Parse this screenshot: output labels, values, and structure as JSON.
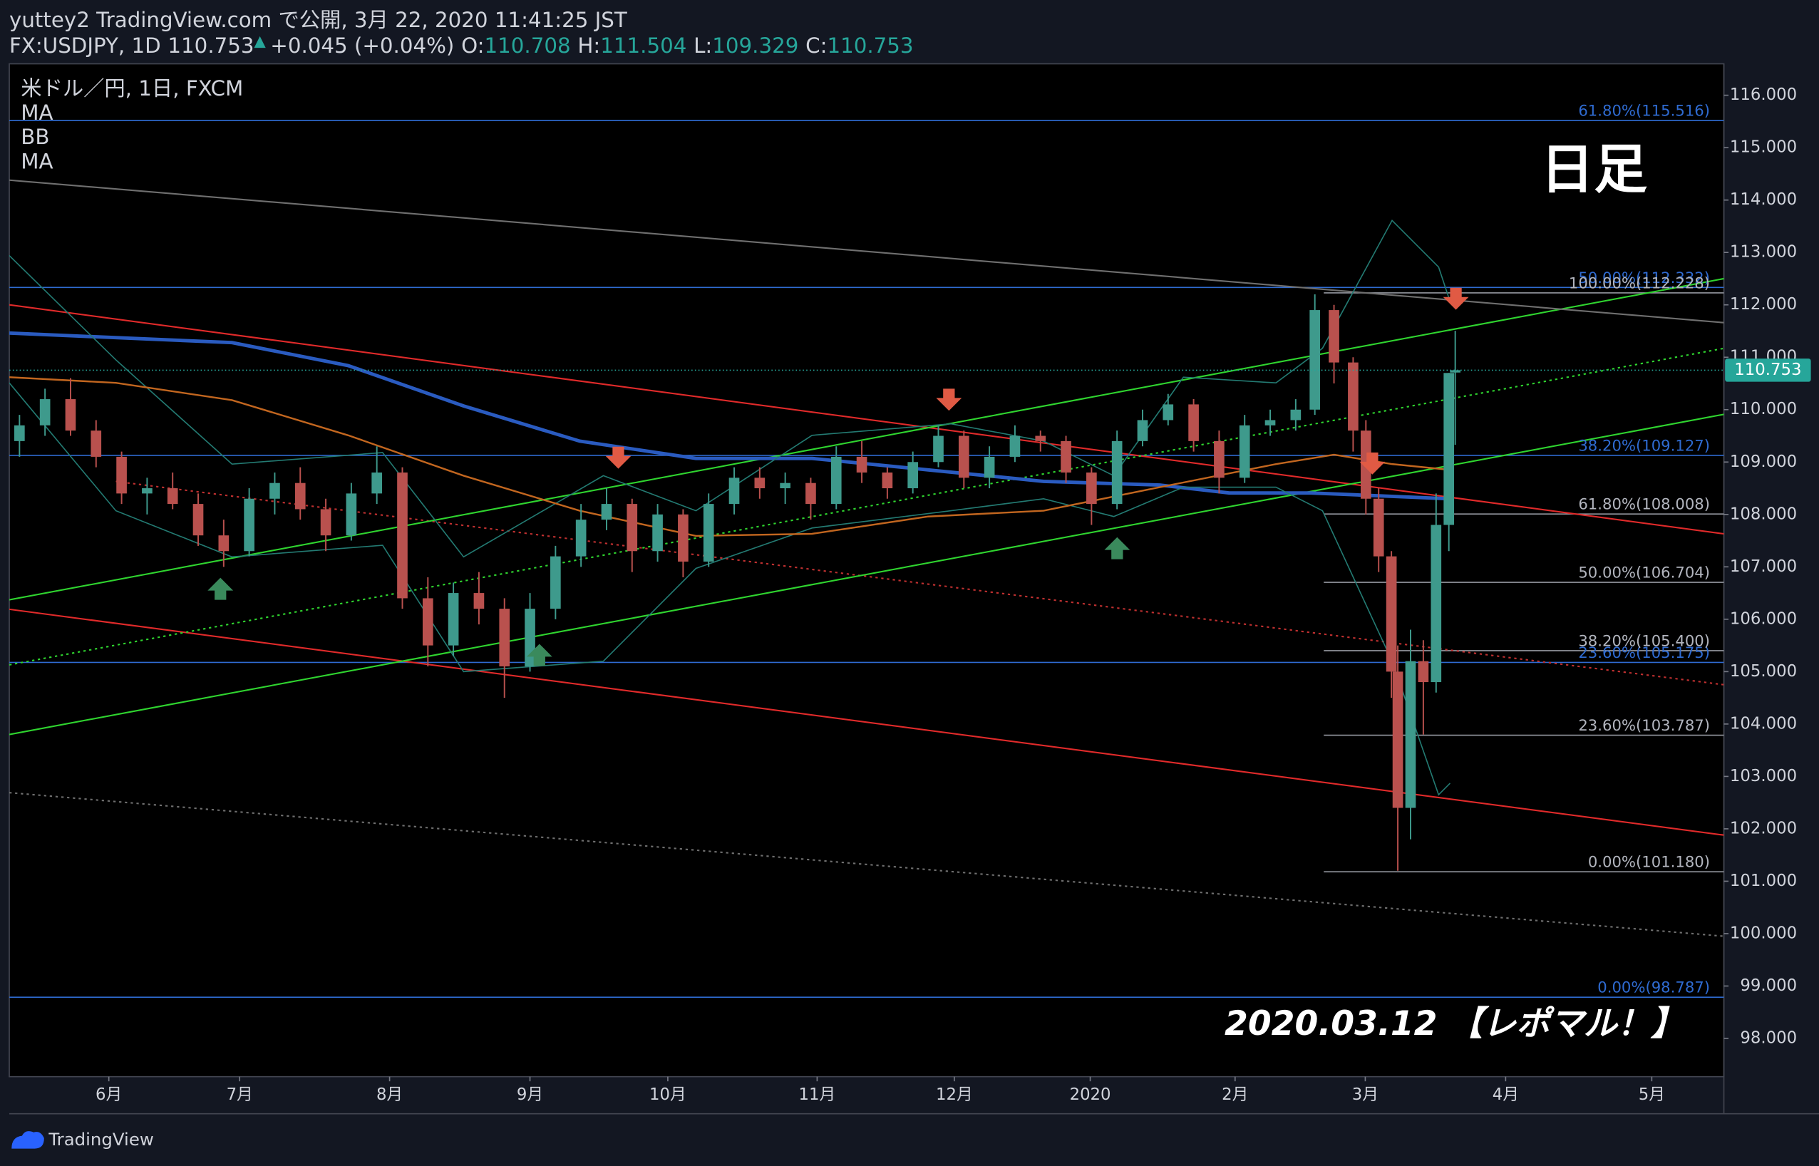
{
  "chart_data": {
    "type": "candlestick",
    "header": {
      "line1": "yuttey2 TradingView.com で公開, 3月 22, 2020 11:41:25 JST",
      "symbol": "FX:USDJPY, 1D",
      "last": "110.753",
      "arrow": "▲",
      "change": "+0.045 (+0.04%)",
      "ohlc": [
        {
          "label": "O:",
          "value": "110.708"
        },
        {
          "label": "H:",
          "value": "111.504"
        },
        {
          "label": "L:",
          "value": "109.329"
        },
        {
          "label": "C:",
          "value": "110.753"
        }
      ]
    },
    "legend_title": "米ドル／円, 1日, FXCM",
    "title": "日足",
    "annotation": "2020.03.12 【レポマル！】",
    "brand": "TradingView",
    "xlim": [
      -15.6,
      253.1
    ],
    "ylim": [
      97.27,
      116.6
    ],
    "xticks": [
      {
        "value": 0,
        "label": "6月"
      },
      {
        "value": 20.5,
        "label": "7月"
      },
      {
        "value": 44,
        "label": "8月"
      },
      {
        "value": 66,
        "label": "9月"
      },
      {
        "value": 87.6,
        "label": "10月"
      },
      {
        "value": 111,
        "label": "11月"
      },
      {
        "value": 132.5,
        "label": "12月"
      },
      {
        "value": 153.8,
        "label": "2020"
      },
      {
        "value": 176.5,
        "label": "2月"
      },
      {
        "value": 196.9,
        "label": "3月"
      },
      {
        "value": 218.9,
        "label": "4月"
      },
      {
        "value": 241.8,
        "label": "5月"
      }
    ],
    "yticks": [
      {
        "value": 98,
        "label": "98.000"
      },
      {
        "value": 99,
        "label": "99.000"
      },
      {
        "value": 100,
        "label": "100.000"
      },
      {
        "value": 101,
        "label": "101.000"
      },
      {
        "value": 102,
        "label": "102.000"
      },
      {
        "value": 103,
        "label": "103.000"
      },
      {
        "value": 104,
        "label": "104.000"
      },
      {
        "value": 105,
        "label": "105.000"
      },
      {
        "value": 106,
        "label": "106.000"
      },
      {
        "value": 107,
        "label": "107.000"
      },
      {
        "value": 108,
        "label": "108.000"
      },
      {
        "value": 109,
        "label": "109.000"
      },
      {
        "value": 110,
        "label": "110.000"
      },
      {
        "value": 111,
        "label": "111.000"
      },
      {
        "value": 112,
        "label": "112.000"
      },
      {
        "value": 113,
        "label": "113.000"
      },
      {
        "value": 114,
        "label": "114.000"
      },
      {
        "value": 115,
        "label": "115.000"
      },
      {
        "value": 116,
        "label": "116.000"
      }
    ],
    "up_color": "#3e9a8c",
    "down_color": "#b9514e",
    "candles": {
      "x": [
        -14,
        -10,
        -6,
        -2,
        2,
        6,
        10,
        14,
        18,
        22,
        26,
        30,
        34,
        38,
        42,
        46,
        50,
        54,
        58,
        62,
        66,
        70,
        74,
        78,
        82,
        86,
        90,
        94,
        98,
        102,
        106,
        110,
        114,
        118,
        122,
        126,
        130,
        134,
        138,
        142,
        146,
        150,
        154,
        158,
        162,
        166,
        170,
        174,
        178,
        182,
        186,
        189,
        192,
        195,
        197,
        199,
        201,
        202,
        204,
        206,
        208,
        210,
        211
      ],
      "open": [
        109.4,
        109.7,
        110.2,
        109.6,
        109.1,
        108.4,
        108.5,
        108.2,
        107.6,
        107.3,
        108.3,
        108.6,
        108.1,
        107.6,
        108.4,
        108.8,
        106.4,
        105.5,
        106.5,
        106.2,
        105.1,
        106.2,
        107.2,
        107.9,
        108.2,
        107.3,
        108.0,
        107.1,
        108.2,
        108.7,
        108.5,
        108.6,
        108.2,
        109.1,
        108.8,
        108.5,
        109.0,
        109.5,
        108.7,
        109.1,
        109.5,
        109.4,
        108.8,
        108.2,
        109.4,
        109.8,
        110.1,
        109.4,
        108.7,
        109.7,
        109.8,
        110.0,
        111.9,
        110.9,
        109.6,
        108.3,
        107.2,
        105.0,
        102.4,
        105.2,
        104.8,
        107.8,
        110.708
      ],
      "high": [
        109.9,
        110.4,
        110.6,
        109.8,
        109.2,
        108.7,
        108.8,
        108.4,
        107.9,
        108.5,
        108.8,
        108.9,
        108.3,
        108.6,
        109.3,
        108.9,
        106.8,
        106.7,
        106.9,
        106.4,
        106.5,
        107.4,
        108.2,
        108.5,
        108.3,
        108.2,
        108.1,
        108.4,
        108.9,
        108.9,
        108.8,
        108.7,
        109.3,
        109.4,
        108.9,
        109.2,
        109.7,
        109.6,
        109.3,
        109.7,
        109.6,
        109.5,
        108.9,
        109.6,
        110.0,
        110.3,
        110.2,
        109.6,
        109.9,
        110.0,
        110.2,
        112.2,
        112.0,
        111.0,
        109.8,
        108.5,
        107.3,
        105.5,
        105.8,
        105.6,
        108.4,
        110.7,
        111.504
      ],
      "low": [
        109.1,
        109.5,
        109.5,
        108.9,
        108.2,
        108.0,
        108.1,
        107.4,
        107.0,
        107.2,
        108.0,
        107.9,
        107.3,
        107.5,
        108.2,
        106.2,
        105.1,
        105.3,
        105.9,
        104.5,
        105.0,
        106.0,
        107.0,
        107.7,
        106.9,
        107.1,
        106.8,
        107.0,
        108.0,
        108.3,
        108.2,
        107.9,
        108.1,
        108.6,
        108.3,
        108.4,
        108.9,
        108.5,
        108.5,
        109.0,
        109.2,
        108.6,
        107.8,
        108.1,
        109.3,
        109.7,
        109.2,
        108.4,
        108.6,
        109.5,
        109.6,
        109.9,
        110.5,
        109.2,
        108.0,
        106.9,
        104.5,
        101.2,
        101.8,
        103.8,
        104.6,
        107.3,
        109.329
      ],
      "close": [
        109.7,
        110.2,
        109.6,
        109.1,
        108.4,
        108.5,
        108.2,
        107.6,
        107.3,
        108.3,
        108.6,
        108.1,
        107.6,
        108.4,
        108.8,
        106.4,
        105.5,
        106.5,
        106.2,
        105.1,
        106.2,
        107.2,
        107.9,
        108.2,
        107.3,
        108.0,
        107.1,
        108.2,
        108.7,
        108.5,
        108.6,
        108.2,
        109.1,
        108.8,
        108.5,
        109.0,
        109.5,
        108.7,
        109.1,
        109.5,
        109.4,
        108.8,
        108.2,
        109.4,
        109.8,
        110.1,
        109.4,
        108.7,
        109.7,
        109.8,
        110.0,
        111.9,
        110.9,
        109.6,
        108.3,
        107.2,
        105.0,
        102.4,
        105.2,
        104.8,
        107.8,
        110.7,
        110.753
      ]
    },
    "overlays": [
      {
        "name": "MA",
        "color": "#2a5bc0",
        "width": 3,
        "x": [
          -15.6,
          19.3,
          37.5,
          55.6,
          73.8,
          92,
          110.2,
          128.4,
          146.5,
          164.7,
          175.6,
          188.4,
          210.2
        ],
        "values": [
          111.46,
          111.28,
          110.84,
          110.07,
          109.4,
          109.07,
          109.07,
          108.85,
          108.63,
          108.56,
          108.41,
          108.41,
          108.3
        ]
      },
      {
        "name": "BB",
        "color": "#237a72",
        "width": 1,
        "x": [
          -15.6,
          1.1,
          19.3,
          42.9,
          55.6,
          77.5,
          92,
          110.2,
          132,
          146.5,
          157.5,
          168.4,
          182.9,
          190.2,
          201.1,
          208.4,
          210.2
        ],
        "upper": [
          112.94,
          110.95,
          108.96,
          109.18,
          107.19,
          108.74,
          108.07,
          109.51,
          109.73,
          109.4,
          108.74,
          110.62,
          110.51,
          111.17,
          113.61,
          112.72,
          112.06
        ],
        "lower": [
          110.51,
          108.07,
          107.19,
          107.41,
          105.0,
          105.2,
          106.97,
          107.74,
          108.07,
          108.3,
          107.96,
          108.52,
          108.52,
          108.07,
          105.2,
          102.65,
          102.87
        ]
      },
      {
        "name": "MA",
        "color": "#c2661f",
        "width": 1.5,
        "x": [
          -15.6,
          1.1,
          19.3,
          37.5,
          55.6,
          73.8,
          92,
          110.2,
          128.4,
          146.5,
          164.7,
          182.9,
          192,
          201.1,
          210.2
        ],
        "values": [
          110.62,
          110.51,
          110.18,
          109.51,
          108.74,
          108.07,
          107.59,
          107.63,
          107.96,
          108.07,
          108.52,
          108.96,
          109.14,
          108.96,
          108.85
        ]
      }
    ],
    "trend_lines": [
      {
        "color": "#e02a2a",
        "style": "solid",
        "x": [
          -15.6,
          253.1
        ],
        "values": [
          112.0,
          107.63
        ]
      },
      {
        "color": "#e02a2a",
        "style": "solid",
        "x": [
          -15.6,
          253.1
        ],
        "values": [
          106.19,
          101.88
        ]
      },
      {
        "color": "#c03030",
        "style": "dotted",
        "x": [
          1.1,
          253.1
        ],
        "values": [
          108.63,
          104.75
        ]
      },
      {
        "color": "#2fd42f",
        "style": "solid",
        "x": [
          -15.6,
          253.1
        ],
        "values": [
          106.37,
          112.5
        ]
      },
      {
        "color": "#2fd42f",
        "style": "solid",
        "x": [
          -15.6,
          253.1
        ],
        "values": [
          103.8,
          109.91
        ]
      },
      {
        "color": "#2fd42f",
        "style": "dotted",
        "x": [
          -15.6,
          253.1
        ],
        "values": [
          105.13,
          111.17
        ]
      },
      {
        "color": "#6f6f6f",
        "style": "solid",
        "x": [
          -15.6,
          253.1
        ],
        "values": [
          114.38,
          111.66
        ]
      },
      {
        "color": "#6f6f6f",
        "style": "dotted",
        "x": [
          -15.6,
          253.1
        ],
        "values": [
          102.69,
          99.95
        ]
      }
    ],
    "fib_blue": {
      "color": "#2f6bd1",
      "levels": [
        {
          "value": 115.516,
          "label": "61.80%(115.516)"
        },
        {
          "value": 112.332,
          "label": "50.00%(112.332)"
        },
        {
          "value": 109.127,
          "label": "38.20%(109.127)"
        },
        {
          "value": 105.175,
          "label": "23.60%(105.175)"
        },
        {
          "value": 98.787,
          "label": "0.00%(98.787)"
        }
      ]
    },
    "fib_grey": {
      "color": "#9598a1",
      "x_start": 190.4,
      "levels": [
        {
          "value": 112.228,
          "label": "100.00%(112.228)"
        },
        {
          "value": 108.008,
          "label": "61.80%(108.008)"
        },
        {
          "value": 106.704,
          "label": "50.00%(106.704)"
        },
        {
          "value": 105.4,
          "label": "38.20%(105.400)"
        },
        {
          "value": 103.787,
          "label": "23.60%(103.787)"
        },
        {
          "value": 101.18,
          "label": "0.00%(101.180)"
        }
      ]
    },
    "last_price": 110.753,
    "last_price_color": "#26a69a"
  }
}
